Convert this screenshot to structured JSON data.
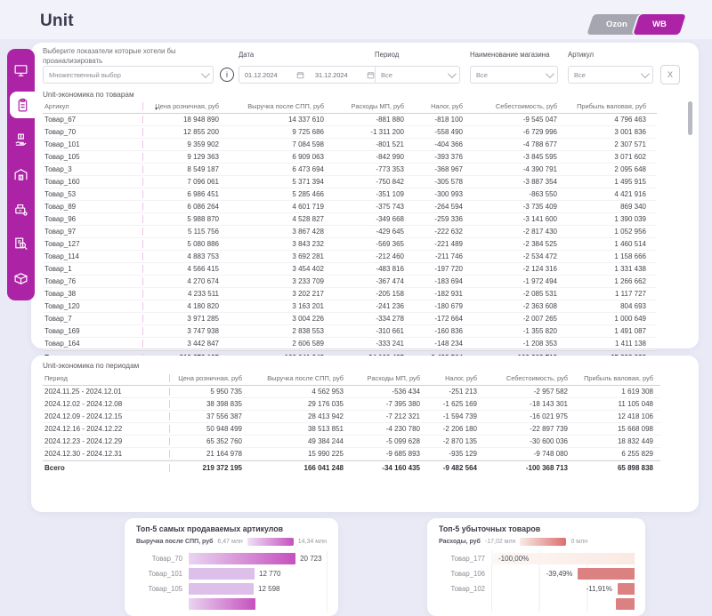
{
  "page": {
    "title": "Unit"
  },
  "tabs": [
    {
      "label": "Ozon",
      "active": false
    },
    {
      "label": "WB",
      "active": true
    }
  ],
  "sidebar": {
    "items": [
      {
        "icon": "monitor",
        "active": false
      },
      {
        "icon": "clipboard",
        "active": true
      },
      {
        "icon": "hand-box",
        "active": false
      },
      {
        "icon": "warehouse",
        "active": false
      },
      {
        "icon": "cash-register",
        "active": false
      },
      {
        "icon": "search-report",
        "active": false
      },
      {
        "icon": "package",
        "active": false
      }
    ]
  },
  "filters": {
    "multiselect_label": "Выберите показатели которые хотели бы проанализировать",
    "multiselect_value": "Множественный выбор",
    "info_icon": "i",
    "date_label": "Дата",
    "date_from": "01.12.2024",
    "date_to": "31.12.2024",
    "period_label": "Период",
    "period_value": "Все",
    "store_label": "Наименование магазина",
    "store_value": "Все",
    "article_label": "Артикул",
    "article_value": "Все",
    "clear_label": "X"
  },
  "table_products": {
    "title": "Unit-экономика по товарам",
    "columns": [
      "Артикул",
      "Цена розничная, руб",
      "Выручка после СПП, руб",
      "Расходы МП, руб",
      "Налог, руб",
      "Себестоимость, руб",
      "Прибыль валовая, руб"
    ],
    "rows": [
      [
        "Товар_67",
        "18 948 890",
        "14 337 610",
        "-881 880",
        "-818 100",
        "-9 545 047",
        "4 796 463"
      ],
      [
        "Товар_70",
        "12 855 200",
        "9 725 686",
        "-1 311 200",
        "-558 490",
        "-6 729 996",
        "3 001 836"
      ],
      [
        "Товар_101",
        "9 359 902",
        "7 084 598",
        "-801 521",
        "-404 366",
        "-4 788 677",
        "2 307 571"
      ],
      [
        "Товар_105",
        "9 129 363",
        "6 909 063",
        "-842 990",
        "-393 376",
        "-3 845 595",
        "3 071 602"
      ],
      [
        "Товар_3",
        "8 549 187",
        "6 473 694",
        "-773 353",
        "-368 967",
        "-4 390 791",
        "2 095 648"
      ],
      [
        "Товар_160",
        "7 096 061",
        "5 371 394",
        "-750 842",
        "-305 578",
        "-3 887 354",
        "1 495 915"
      ],
      [
        "Товар_53",
        "6 986 451",
        "5 285 466",
        "-351 109",
        "-300 993",
        "-863 550",
        "4 421 916"
      ],
      [
        "Товар_89",
        "6 086 264",
        "4 601 719",
        "-375 743",
        "-264 594",
        "-3 735 409",
        "869 340"
      ],
      [
        "Товар_96",
        "5 988 870",
        "4 528 827",
        "-349 668",
        "-259 336",
        "-3 141 600",
        "1 390 039"
      ],
      [
        "Товар_97",
        "5 115 756",
        "3 867 428",
        "-429 645",
        "-222 632",
        "-2 817 430",
        "1 052 956"
      ],
      [
        "Товар_127",
        "5 080 886",
        "3 843 232",
        "-569 365",
        "-221 489",
        "-2 384 525",
        "1 460 514"
      ],
      [
        "Товар_114",
        "4 883 753",
        "3 692 281",
        "-212 460",
        "-211 746",
        "-2 534 472",
        "1 158 666"
      ],
      [
        "Товар_1",
        "4 566 415",
        "3 454 402",
        "-483 816",
        "-197 720",
        "-2 124 316",
        "1 331 438"
      ],
      [
        "Товар_76",
        "4 270 674",
        "3 233 709",
        "-367 474",
        "-183 694",
        "-1 972 494",
        "1 266 662"
      ],
      [
        "Товар_38",
        "4 233 511",
        "3 202 217",
        "-205 158",
        "-182 931",
        "-2 085 531",
        "1 117 727"
      ],
      [
        "Товар_120",
        "4 180 820",
        "3 163 201",
        "-241 236",
        "-180 679",
        "-2 363 608",
        "804 693"
      ],
      [
        "Товар_7",
        "3 971 285",
        "3 004 226",
        "-334 278",
        "-172 664",
        "-2 007 265",
        "1 000 649"
      ],
      [
        "Товар_169",
        "3 747 938",
        "2 838 553",
        "-310 661",
        "-160 836",
        "-1 355 820",
        "1 491 087"
      ],
      [
        "Товар_164",
        "3 442 847",
        "2 606 589",
        "-333 241",
        "-148 234",
        "-1 208 353",
        "1 411 138"
      ]
    ],
    "total": [
      "Всего",
      "219 372 195",
      "166 041 248",
      "-34 160 435",
      "-9 482 564",
      "-100 368 713",
      "65 898 838"
    ]
  },
  "table_periods": {
    "title": "Unit-экономика по периодам",
    "columns": [
      "Период",
      "Цена розничная, руб",
      "Выручка после СПП, руб",
      "Расходы МП, руб",
      "Налог, руб",
      "Себестоимость, руб",
      "Прибыль валовая, руб"
    ],
    "rows": [
      [
        "2024.11.25 - 2024.12.01",
        "5 950 735",
        "4 562 953",
        "-536 434",
        "-251 213",
        "-2 957 582",
        "1 619 308"
      ],
      [
        "2024.12.02 - 2024.12.08",
        "38 398 835",
        "29 176 035",
        "-7 395 380",
        "-1 625 169",
        "-18 143 301",
        "11 105 048"
      ],
      [
        "2024.12.09 - 2024.12.15",
        "37 556 387",
        "28 413 942",
        "-7 212 321",
        "-1 594 739",
        "-16 021 975",
        "12 418 106"
      ],
      [
        "2024.12.16 - 2024.12.22",
        "50 948 499",
        "38 513 851",
        "-4 230 780",
        "-2 206 180",
        "-22 897 739",
        "15 668 098"
      ],
      [
        "2024.12.23 - 2024.12.29",
        "65 352 760",
        "49 384 244",
        "-5 099 628",
        "-2 870 135",
        "-30 600 036",
        "18 832 449"
      ],
      [
        "2024.12.30 - 2024.12.31",
        "21 164 978",
        "15 990 225",
        "-9 685 893",
        "-935 129",
        "-9 748 080",
        "6 255 829"
      ]
    ],
    "total": [
      "Всего",
      "219 372 195",
      "166 041 248",
      "-34 160 435",
      "-9 482 564",
      "-100 368 713",
      "65 898 838"
    ]
  },
  "chart_data": [
    {
      "type": "bar",
      "title": "Топ-5 самых продаваемых артикулов",
      "legend_label": "Выручка после СПП, руб",
      "legend_min": "6,47 млн",
      "legend_max": "14,34 млн",
      "categories": [
        "Товар_70",
        "Товар_101",
        "Товар_105"
      ],
      "values": [
        20723,
        12770,
        12598
      ],
      "value_labels": [
        "20 723",
        "12 770",
        "12 598"
      ],
      "bar_styles": [
        "gradient",
        "flat",
        "flat"
      ],
      "align": "left",
      "legend_position": "top",
      "partial_bar": {
        "width_pct": 48,
        "style": "gradient"
      }
    },
    {
      "type": "bar",
      "title": "Топ-5 убыточных товаров",
      "legend_label": "Расходы, руб",
      "legend_min": "-17,02 млн",
      "legend_max": "0 млн",
      "categories": [
        "Товар_177",
        "Товар_106",
        "Товар_102"
      ],
      "values": [
        -100.0,
        -39.49,
        -11.91
      ],
      "value_labels": [
        "-100,00%",
        "-39,49%",
        "-11,91%"
      ],
      "bar_styles": [
        "lightest",
        "salmon",
        "salmon"
      ],
      "align": "right",
      "legend_position": "top",
      "partial_bar": {
        "width_pct": 13,
        "style": "salmon"
      }
    }
  ],
  "colors": {
    "accent_magenta": "#AC23A5",
    "tab_gray": "#A6A6B0",
    "page_background": "#E9EAF6",
    "bar_purple_dark": "#C551BE",
    "bar_purple_light": "#DDBFEA",
    "bar_salmon": "#DC8181",
    "table_separator_pink": "#EFC4E7"
  }
}
